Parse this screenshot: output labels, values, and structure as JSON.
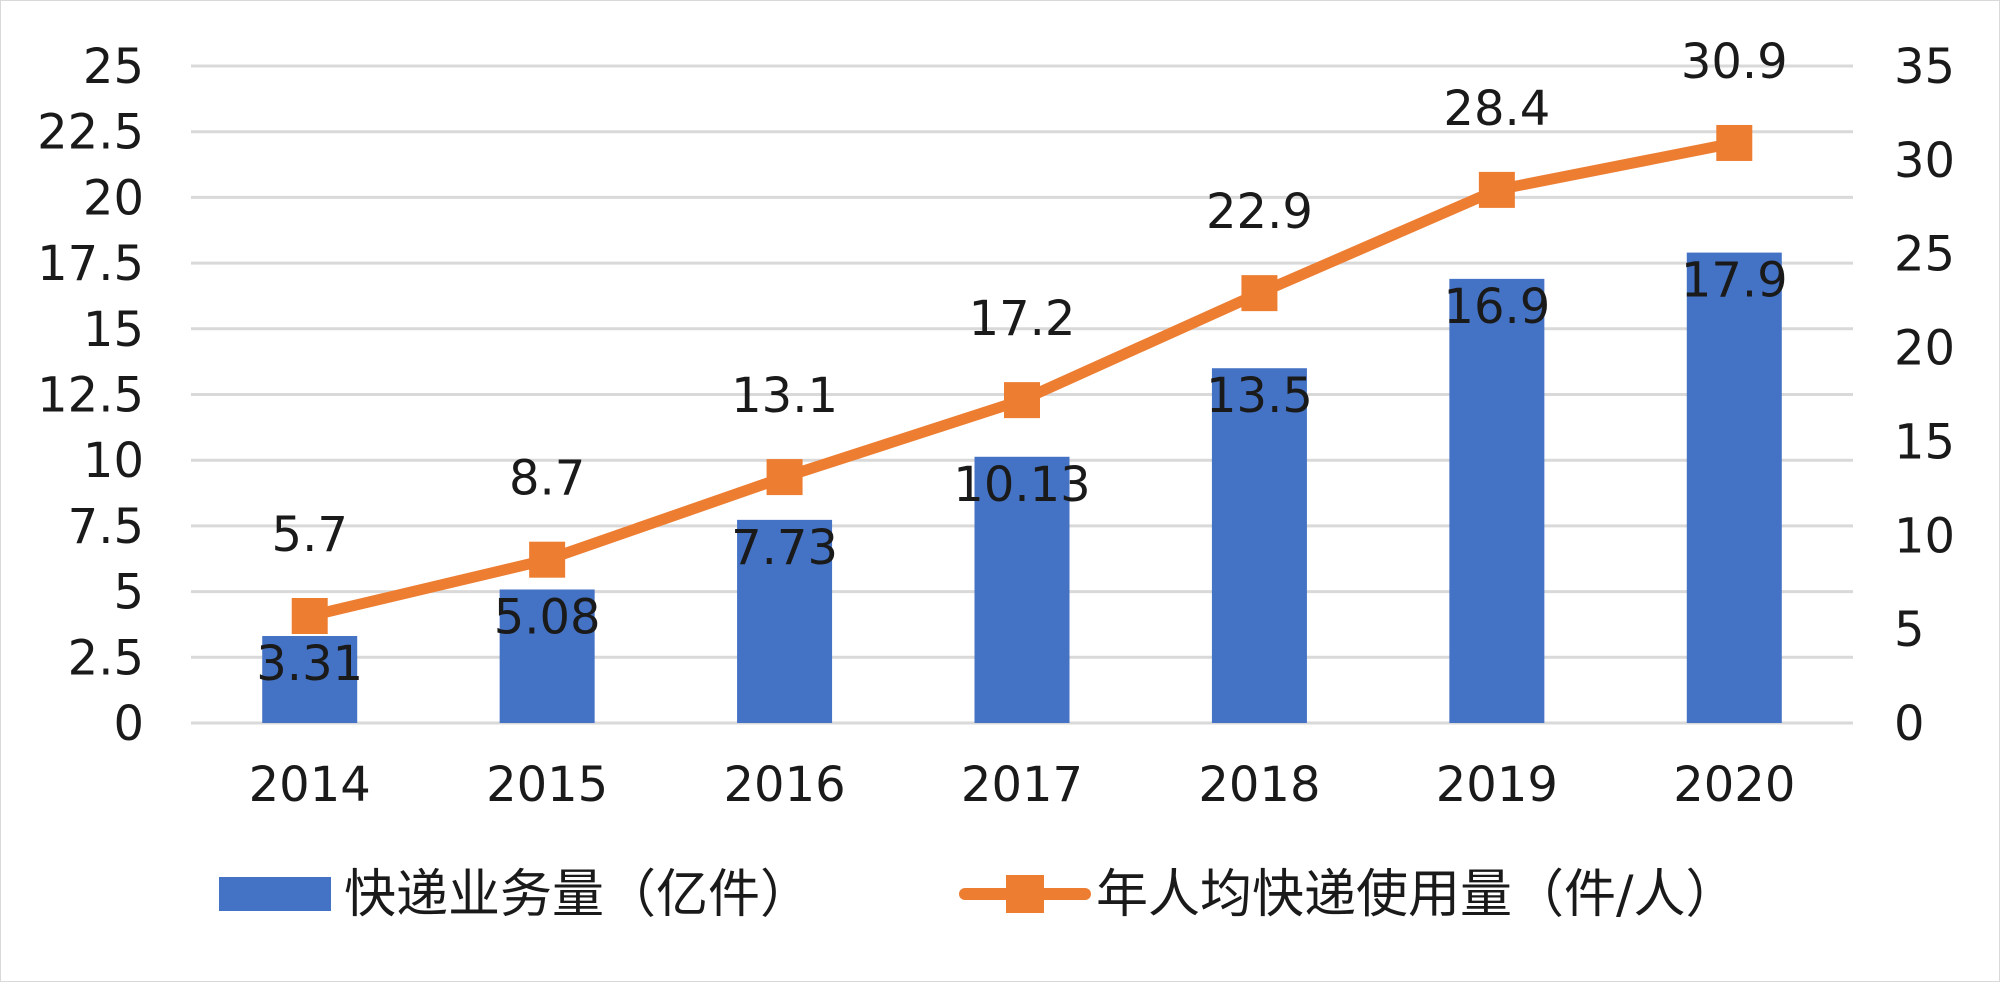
{
  "chart_data": {
    "type": "bar",
    "title": "",
    "categories": [
      "2014",
      "2015",
      "2016",
      "2017",
      "2018",
      "2019",
      "2020"
    ],
    "series": [
      {
        "name": "快递业务量（亿件）",
        "type": "bar",
        "axis": "left",
        "color": "#4472C4",
        "values": [
          3.31,
          5.08,
          7.73,
          10.13,
          13.5,
          16.9,
          17.9
        ],
        "labels": [
          "3.31",
          "5.08",
          "7.73",
          "10.13",
          "13.5",
          "16.9",
          "17.9"
        ]
      },
      {
        "name": "年人均快递使用量（件/人）",
        "type": "line",
        "marker": "square",
        "axis": "right",
        "color": "#ED7D31",
        "values": [
          5.7,
          8.7,
          13.1,
          17.2,
          22.9,
          28.4,
          30.9
        ],
        "labels": [
          "5.7",
          "8.7",
          "13.1",
          "17.2",
          "22.9",
          "28.4",
          "30.9"
        ]
      }
    ],
    "y_left": {
      "ylim": [
        0,
        25
      ],
      "ticks": [
        "0",
        "2.5",
        "5",
        "7.5",
        "10",
        "12.5",
        "15",
        "17.5",
        "20",
        "22.5",
        "25"
      ]
    },
    "y_right": {
      "ylim": [
        0,
        35
      ],
      "ticks": [
        "0",
        "5",
        "10",
        "15",
        "20",
        "25",
        "30",
        "35"
      ]
    },
    "grid": true,
    "legend_position": "bottom"
  }
}
